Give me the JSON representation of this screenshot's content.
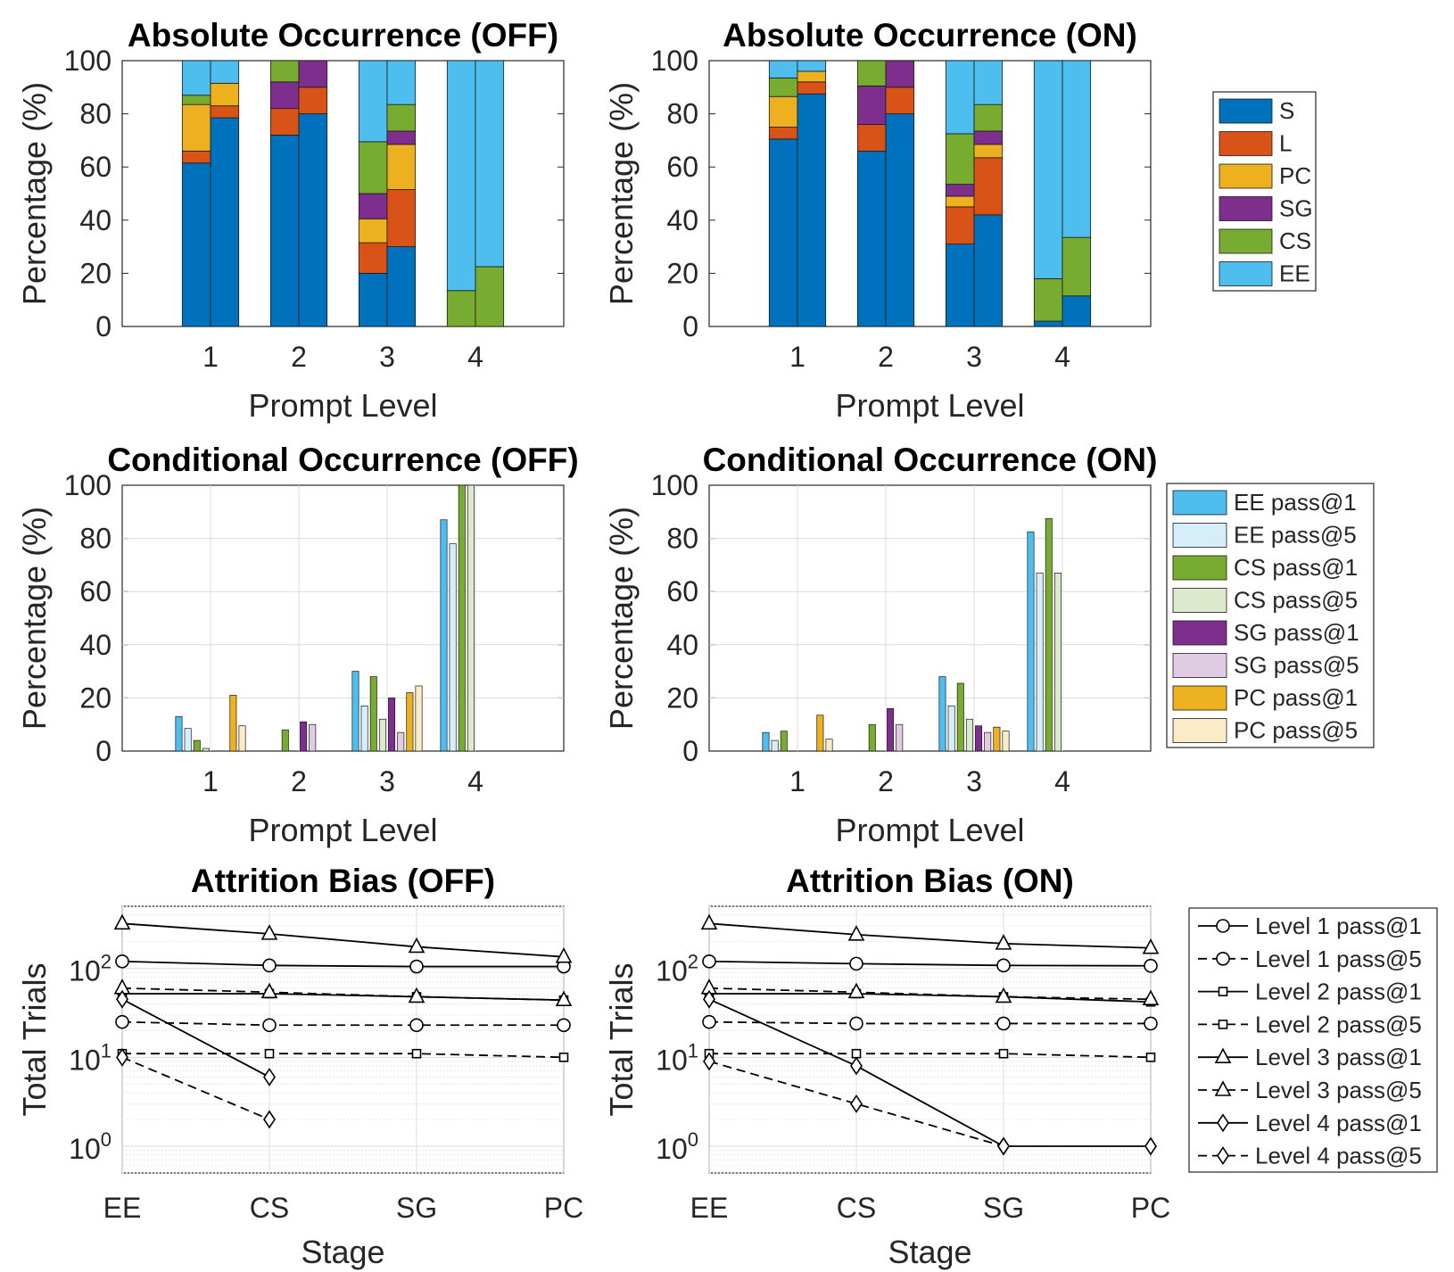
{
  "colors": {
    "S": "#0072BD",
    "L": "#D95319",
    "PC": "#EDB120",
    "SG": "#7E2F8E",
    "CS": "#77AC30",
    "EE": "#4DBEEE",
    "EE_light": "#D6EEF9",
    "CS_light": "#DDE9CC",
    "SG_light": "#DFCBE2",
    "PC_light": "#FBEBC7"
  },
  "legends": {
    "stacked": [
      "S",
      "L",
      "PC",
      "SG",
      "CS",
      "EE"
    ],
    "conditional": [
      "EE pass@1",
      "EE pass@5",
      "CS pass@1",
      "CS pass@5",
      "SG pass@1",
      "SG pass@5",
      "PC pass@1",
      "PC pass@5"
    ],
    "attrition": [
      "Level 1 pass@1",
      "Level 1 pass@5",
      "Level 2 pass@1",
      "Level 2 pass@5",
      "Level 3 pass@1",
      "Level 3 pass@5",
      "Level 4 pass@1",
      "Level 4 pass@5"
    ]
  },
  "chart_data": [
    {
      "type": "bar",
      "stacked": true,
      "title": "Absolute Occurrence (OFF)",
      "xlabel": "Prompt Level",
      "ylabel": "Percentage (%)",
      "ylim": [
        0,
        100
      ],
      "yticks": [
        0,
        20,
        40,
        60,
        80,
        100
      ],
      "categories": [
        "1",
        "2",
        "3",
        "4"
      ],
      "bars_per_category": 2,
      "segment_order": [
        "S",
        "L",
        "PC",
        "SG",
        "CS",
        "EE"
      ],
      "bars": [
        {
          "level": "1",
          "pass": "pass@1",
          "S": 61.5,
          "L": 4.5,
          "PC": 17.5,
          "SG": 0,
          "CS": 3.5,
          "EE": 13
        },
        {
          "level": "1",
          "pass": "pass@5",
          "S": 78.5,
          "L": 4.5,
          "PC": 8.5,
          "SG": 0,
          "CS": 0,
          "EE": 8.5
        },
        {
          "level": "2",
          "pass": "pass@1",
          "S": 72,
          "L": 10,
          "PC": 0,
          "SG": 10,
          "CS": 8,
          "EE": 0
        },
        {
          "level": "2",
          "pass": "pass@5",
          "S": 80,
          "L": 10,
          "PC": 0,
          "SG": 10,
          "CS": 0,
          "EE": 0
        },
        {
          "level": "3",
          "pass": "pass@1",
          "S": 20,
          "L": 11.5,
          "PC": 9,
          "SG": 9.5,
          "CS": 19.5,
          "EE": 30.5
        },
        {
          "level": "3",
          "pass": "pass@5",
          "S": 30,
          "L": 21.5,
          "PC": 17,
          "SG": 5,
          "CS": 10,
          "EE": 16.5
        },
        {
          "level": "4",
          "pass": "pass@1",
          "S": 0,
          "L": 0,
          "PC": 0,
          "SG": 0,
          "CS": 13.5,
          "EE": 86.5
        },
        {
          "level": "4",
          "pass": "pass@5",
          "S": 0,
          "L": 0,
          "PC": 0,
          "SG": 0,
          "CS": 22.5,
          "EE": 77.5
        }
      ]
    },
    {
      "type": "bar",
      "stacked": true,
      "title": "Absolute Occurrence (ON)",
      "xlabel": "Prompt Level",
      "ylabel": "Percentage (%)",
      "ylim": [
        0,
        100
      ],
      "yticks": [
        0,
        20,
        40,
        60,
        80,
        100
      ],
      "categories": [
        "1",
        "2",
        "3",
        "4"
      ],
      "bars_per_category": 2,
      "segment_order": [
        "S",
        "L",
        "PC",
        "SG",
        "CS",
        "EE"
      ],
      "bars": [
        {
          "level": "1",
          "pass": "pass@1",
          "S": 70.5,
          "L": 4.5,
          "PC": 11.5,
          "SG": 0,
          "CS": 7,
          "EE": 6.5
        },
        {
          "level": "1",
          "pass": "pass@5",
          "S": 87.5,
          "L": 4.5,
          "PC": 4,
          "SG": 0,
          "CS": 0,
          "EE": 4
        },
        {
          "level": "2",
          "pass": "pass@1",
          "S": 66,
          "L": 10,
          "PC": 0,
          "SG": 14.5,
          "CS": 9.5,
          "EE": 0
        },
        {
          "level": "2",
          "pass": "pass@5",
          "S": 80,
          "L": 10,
          "PC": 0,
          "SG": 10,
          "CS": 0,
          "EE": 0
        },
        {
          "level": "3",
          "pass": "pass@1",
          "S": 31,
          "L": 14,
          "PC": 4,
          "SG": 4.5,
          "CS": 19,
          "EE": 27.5
        },
        {
          "level": "3",
          "pass": "pass@5",
          "S": 42,
          "L": 21.5,
          "PC": 5,
          "SG": 5,
          "CS": 10,
          "EE": 16.5
        },
        {
          "level": "4",
          "pass": "pass@1",
          "S": 2,
          "L": 0,
          "PC": 0,
          "SG": 0,
          "CS": 16,
          "EE": 82
        },
        {
          "level": "4",
          "pass": "pass@5",
          "S": 11.5,
          "L": 0,
          "PC": 0,
          "SG": 0,
          "CS": 22,
          "EE": 66.5
        }
      ]
    },
    {
      "type": "bar",
      "title": "Conditional Occurrence (OFF)",
      "xlabel": "Prompt Level",
      "ylabel": "Percentage (%)",
      "ylim": [
        0,
        100
      ],
      "yticks": [
        0,
        20,
        40,
        60,
        80,
        100
      ],
      "categories": [
        "1",
        "2",
        "3",
        "4"
      ],
      "series": [
        {
          "name": "EE pass@1",
          "values": [
            13,
            0,
            30,
            87
          ]
        },
        {
          "name": "EE pass@5",
          "values": [
            8.5,
            0,
            17,
            78
          ]
        },
        {
          "name": "CS pass@1",
          "values": [
            4,
            8,
            28,
            100
          ]
        },
        {
          "name": "CS pass@5",
          "values": [
            1,
            0,
            12,
            100
          ]
        },
        {
          "name": "SG pass@1",
          "values": [
            0,
            11,
            20,
            0
          ]
        },
        {
          "name": "SG pass@5",
          "values": [
            0,
            10,
            7,
            0
          ]
        },
        {
          "name": "PC pass@1",
          "values": [
            21,
            0,
            22,
            0
          ]
        },
        {
          "name": "PC pass@5",
          "values": [
            9.5,
            0,
            24.5,
            0
          ]
        }
      ]
    },
    {
      "type": "bar",
      "title": "Conditional Occurrence (ON)",
      "xlabel": "Prompt Level",
      "ylabel": "Percentage (%)",
      "ylim": [
        0,
        100
      ],
      "yticks": [
        0,
        20,
        40,
        60,
        80,
        100
      ],
      "categories": [
        "1",
        "2",
        "3",
        "4"
      ],
      "series": [
        {
          "name": "EE pass@1",
          "values": [
            7,
            0,
            28,
            82.5
          ]
        },
        {
          "name": "EE pass@5",
          "values": [
            4,
            0,
            17,
            67
          ]
        },
        {
          "name": "CS pass@1",
          "values": [
            7.5,
            10,
            25.5,
            87.5
          ]
        },
        {
          "name": "CS pass@5",
          "values": [
            0,
            0,
            12,
            67
          ]
        },
        {
          "name": "SG pass@1",
          "values": [
            0,
            16,
            9.5,
            0
          ]
        },
        {
          "name": "SG pass@5",
          "values": [
            0,
            10,
            7,
            0
          ]
        },
        {
          "name": "PC pass@1",
          "values": [
            13.5,
            0,
            9,
            0
          ]
        },
        {
          "name": "PC pass@5",
          "values": [
            4.5,
            0,
            7.5,
            0
          ]
        }
      ]
    },
    {
      "type": "line",
      "yscale": "log",
      "title": "Attrition Bias (OFF)",
      "xlabel": "Stage",
      "ylabel": "Total Trials",
      "categories": [
        "EE",
        "CS",
        "SG",
        "PC"
      ],
      "ylim": [
        0.5,
        500
      ],
      "yticks": [
        1,
        10,
        100
      ],
      "yticklabels": [
        [
          "10",
          "0"
        ],
        [
          "10",
          "1"
        ],
        [
          "10",
          "2"
        ]
      ],
      "series": [
        {
          "name": "Level 1 pass@1",
          "marker": "circle",
          "dash": false,
          "values": [
            120,
            108,
            105,
            105
          ]
        },
        {
          "name": "Level 1 pass@5",
          "marker": "circle",
          "dash": true,
          "values": [
            25,
            23,
            23,
            23
          ]
        },
        {
          "name": "Level 2 pass@1",
          "marker": "square",
          "dash": false,
          "values": [
            52,
            52,
            48,
            44
          ]
        },
        {
          "name": "Level 2 pass@5",
          "marker": "square",
          "dash": true,
          "values": [
            11,
            11,
            11,
            10
          ]
        },
        {
          "name": "Level 3 pass@1",
          "marker": "triangle",
          "dash": false,
          "values": [
            320,
            245,
            175,
            135
          ]
        },
        {
          "name": "Level 3 pass@5",
          "marker": "triangle",
          "dash": true,
          "values": [
            60,
            54,
            48,
            44
          ]
        },
        {
          "name": "Level 4 pass@1",
          "marker": "diamond",
          "dash": false,
          "values": [
            45,
            6,
            null,
            null
          ]
        },
        {
          "name": "Level 4 pass@5",
          "marker": "diamond",
          "dash": true,
          "values": [
            10,
            2,
            null,
            null
          ]
        }
      ]
    },
    {
      "type": "line",
      "yscale": "log",
      "title": "Attrition Bias (ON)",
      "xlabel": "Stage",
      "ylabel": "Total Trials",
      "categories": [
        "EE",
        "CS",
        "SG",
        "PC"
      ],
      "ylim": [
        0.5,
        500
      ],
      "yticks": [
        1,
        10,
        100
      ],
      "yticklabels": [
        [
          "10",
          "0"
        ],
        [
          "10",
          "1"
        ],
        [
          "10",
          "2"
        ]
      ],
      "series": [
        {
          "name": "Level 1 pass@1",
          "marker": "circle",
          "dash": false,
          "values": [
            120,
            113,
            108,
            107
          ]
        },
        {
          "name": "Level 1 pass@5",
          "marker": "circle",
          "dash": true,
          "values": [
            25,
            24,
            24,
            24
          ]
        },
        {
          "name": "Level 2 pass@1",
          "marker": "square",
          "dash": false,
          "values": [
            52,
            52,
            48,
            42
          ]
        },
        {
          "name": "Level 2 pass@5",
          "marker": "square",
          "dash": true,
          "values": [
            11,
            11,
            11,
            10
          ]
        },
        {
          "name": "Level 3 pass@1",
          "marker": "triangle",
          "dash": false,
          "values": [
            320,
            240,
            190,
            170
          ]
        },
        {
          "name": "Level 3 pass@5",
          "marker": "triangle",
          "dash": true,
          "values": [
            60,
            54,
            48,
            45
          ]
        },
        {
          "name": "Level 4 pass@1",
          "marker": "diamond",
          "dash": false,
          "values": [
            45,
            8,
            1,
            1
          ]
        },
        {
          "name": "Level 4 pass@5",
          "marker": "diamond",
          "dash": true,
          "values": [
            9,
            3,
            1,
            null
          ]
        }
      ]
    }
  ]
}
